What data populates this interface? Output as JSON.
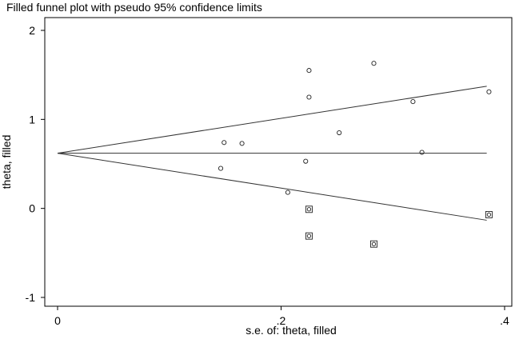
{
  "chart_data": {
    "type": "scatter",
    "title": "Filled funnel plot with pseudo 95% confidence limits",
    "xlabel": "s.e. of: theta, filled",
    "ylabel": "theta, filled",
    "xlim": [
      0,
      0.4
    ],
    "ylim": [
      -1,
      2
    ],
    "x_ticks": [
      0,
      0.2,
      0.4
    ],
    "x_tick_labels": [
      "0",
      ".2",
      ".4"
    ],
    "y_ticks": [
      -1,
      0,
      1,
      2
    ],
    "y_tick_labels": [
      "-1",
      "0",
      "1",
      "2"
    ],
    "grid": false,
    "pooled_estimate": 0.62,
    "ci_multiplier": 1.96,
    "line_se_max": 0.384,
    "series": [
      {
        "marker": "circle",
        "points": [
          {
            "x": 0.146,
            "y": 0.45
          },
          {
            "x": 0.149,
            "y": 0.74
          },
          {
            "x": 0.165,
            "y": 0.73
          },
          {
            "x": 0.206,
            "y": 0.18
          },
          {
            "x": 0.222,
            "y": 0.53
          },
          {
            "x": 0.225,
            "y": 1.55
          },
          {
            "x": 0.225,
            "y": 1.25
          },
          {
            "x": 0.252,
            "y": 0.85
          },
          {
            "x": 0.283,
            "y": 1.63
          },
          {
            "x": 0.318,
            "y": 1.2
          },
          {
            "x": 0.326,
            "y": 0.63
          },
          {
            "x": 0.386,
            "y": 1.31
          }
        ]
      },
      {
        "marker": "boxed-square",
        "points": [
          {
            "x": 0.225,
            "y": -0.01
          },
          {
            "x": 0.225,
            "y": -0.31
          },
          {
            "x": 0.283,
            "y": -0.4
          },
          {
            "x": 0.386,
            "y": -0.07
          }
        ]
      }
    ]
  }
}
